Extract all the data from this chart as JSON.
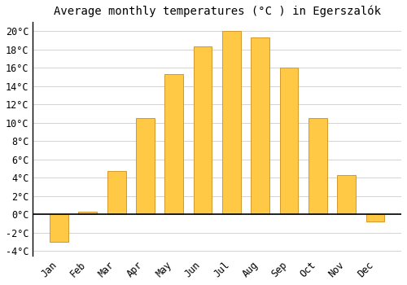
{
  "title": "Average monthly temperatures (°C ) in Egerszalók",
  "months": [
    "Jan",
    "Feb",
    "Mar",
    "Apr",
    "May",
    "Jun",
    "Jul",
    "Aug",
    "Sep",
    "Oct",
    "Nov",
    "Dec"
  ],
  "values": [
    -3.0,
    0.3,
    4.7,
    10.5,
    15.3,
    18.3,
    20.0,
    19.3,
    16.0,
    10.5,
    4.3,
    -0.8
  ],
  "bar_color": "#FFC845",
  "bar_edge_color": "#D4982A",
  "background_color": "#ffffff",
  "grid_color": "#cccccc",
  "ylim": [
    -4.5,
    21.0
  ],
  "yticks": [
    -4,
    -2,
    0,
    2,
    4,
    6,
    8,
    10,
    12,
    14,
    16,
    18,
    20
  ],
  "ytick_labels": [
    "-4°C",
    "-2°C",
    "0°C",
    "2°C",
    "4°C",
    "6°C",
    "8°C",
    "10°C",
    "12°C",
    "14°C",
    "16°C",
    "18°C",
    "20°C"
  ],
  "title_fontsize": 10,
  "tick_fontsize": 8.5,
  "figsize": [
    5.0,
    3.5
  ],
  "dpi": 100
}
